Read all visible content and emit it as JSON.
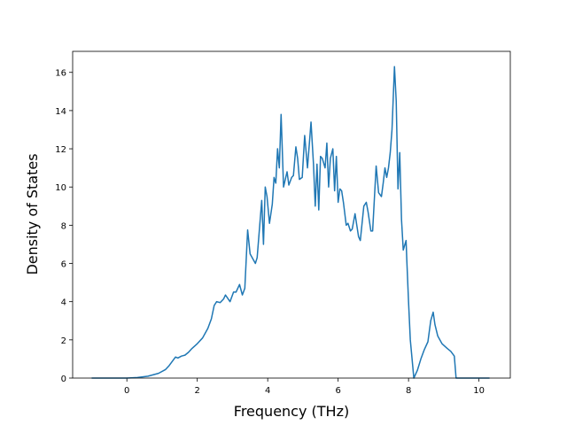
{
  "chart_data": {
    "type": "line",
    "xlabel": "Frequency (THz)",
    "ylabel": "Density of States",
    "color": "#1f77b4",
    "x": [
      -1.0,
      -0.5,
      0.0,
      0.3,
      0.6,
      0.9,
      1.1,
      1.2,
      1.3,
      1.38,
      1.45,
      1.55,
      1.65,
      1.75,
      1.85,
      2.0,
      2.15,
      2.3,
      2.4,
      2.48,
      2.55,
      2.65,
      2.75,
      2.8,
      2.93,
      3.03,
      3.1,
      3.2,
      3.28,
      3.35,
      3.43,
      3.5,
      3.65,
      3.7,
      3.83,
      3.88,
      3.93,
      3.98,
      4.05,
      4.13,
      4.18,
      4.23,
      4.28,
      4.33,
      4.38,
      4.45,
      4.55,
      4.6,
      4.68,
      4.73,
      4.8,
      4.85,
      4.9,
      4.98,
      5.05,
      5.13,
      5.23,
      5.3,
      5.35,
      5.4,
      5.45,
      5.5,
      5.55,
      5.63,
      5.68,
      5.73,
      5.78,
      5.85,
      5.9,
      5.95,
      6.0,
      6.05,
      6.1,
      6.15,
      6.23,
      6.28,
      6.35,
      6.4,
      6.48,
      6.53,
      6.58,
      6.63,
      6.73,
      6.8,
      6.85,
      6.93,
      6.98,
      7.08,
      7.15,
      7.23,
      7.28,
      7.33,
      7.38,
      7.43,
      7.48,
      7.53,
      7.6,
      7.65,
      7.7,
      7.75,
      7.8,
      7.85,
      7.93,
      7.95,
      8.0,
      8.05,
      8.15,
      8.25,
      8.35,
      8.45,
      8.55,
      8.63,
      8.7,
      8.75,
      8.83,
      8.95,
      9.1,
      9.2,
      9.3,
      9.35,
      9.5,
      10.3
    ],
    "values": [
      0,
      0,
      0,
      0.03,
      0.1,
      0.25,
      0.45,
      0.65,
      0.9,
      1.1,
      1.05,
      1.15,
      1.2,
      1.35,
      1.55,
      1.8,
      2.1,
      2.6,
      3.1,
      3.8,
      4.0,
      3.95,
      4.15,
      4.35,
      4.0,
      4.5,
      4.5,
      4.9,
      4.35,
      4.7,
      7.75,
      6.5,
      6.0,
      6.3,
      9.3,
      7.0,
      10.0,
      9.5,
      8.1,
      9.1,
      10.5,
      10.2,
      12.0,
      11.0,
      13.8,
      10.0,
      10.8,
      10.1,
      10.5,
      10.6,
      12.1,
      11.5,
      10.4,
      10.5,
      12.7,
      11.0,
      13.4,
      11.2,
      9.0,
      11.2,
      8.8,
      11.6,
      11.5,
      11.0,
      12.3,
      10.0,
      11.5,
      12.0,
      9.8,
      11.6,
      9.2,
      9.9,
      9.8,
      9.2,
      8.0,
      8.1,
      7.7,
      7.8,
      8.6,
      8.0,
      7.4,
      7.2,
      9.0,
      9.2,
      8.7,
      7.7,
      7.7,
      11.1,
      9.7,
      9.5,
      10.2,
      11.0,
      10.5,
      11.0,
      11.8,
      13.0,
      16.3,
      14.5,
      9.9,
      11.8,
      8.3,
      6.7,
      7.2,
      6.2,
      4.0,
      2.0,
      0.0,
      0.4,
      1.0,
      1.5,
      1.9,
      3.0,
      3.45,
      2.8,
      2.2,
      1.8,
      1.55,
      1.4,
      1.15,
      0.0,
      0,
      0
    ],
    "xlim": [
      -1.54,
      10.89
    ],
    "ylim": [
      0,
      17.1
    ],
    "xticks": [
      0,
      2,
      4,
      6,
      8,
      10
    ],
    "yticks": [
      0,
      2,
      4,
      6,
      8,
      10,
      12,
      14,
      16
    ]
  }
}
